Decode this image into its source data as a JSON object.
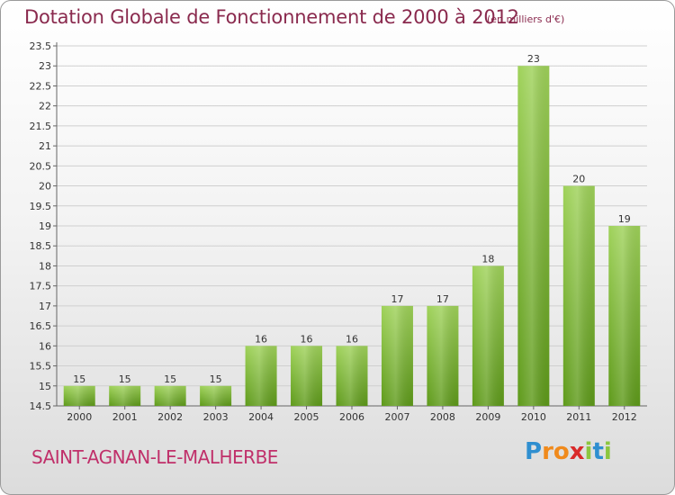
{
  "title": "Dotation Globale de Fonctionnement de 2000 à 2012",
  "subtitle": "(en milliers d'€)",
  "commune": "SAINT-AGNAN-LE-MALHERBE",
  "logo": {
    "letters": [
      "P",
      "r",
      "o",
      "x",
      "i",
      "t",
      "i"
    ],
    "colors": [
      "#2f8fd0",
      "#f08a1c",
      "#f08a1c",
      "#d92a2a",
      "#8cc63f",
      "#2f8fd0",
      "#8cc63f"
    ]
  },
  "colors": {
    "bar_light": "#9fd25a",
    "bar_dark": "#5e9a1a",
    "grid": "#cfcfcf",
    "title": "#8a2a4e",
    "commune": "#c0306a"
  },
  "chart_data": {
    "type": "bar",
    "categories": [
      "2000",
      "2001",
      "2002",
      "2003",
      "2004",
      "2005",
      "2006",
      "2007",
      "2008",
      "2009",
      "2010",
      "2011",
      "2012"
    ],
    "values": [
      15,
      15,
      15,
      15,
      16,
      16,
      16,
      17,
      17,
      18,
      23,
      20,
      19
    ],
    "data_labels": [
      "15",
      "15",
      "15",
      "15",
      "16",
      "16",
      "16",
      "17",
      "17",
      "18",
      "23",
      "20",
      "19"
    ],
    "ylim": [
      14.5,
      23.5
    ],
    "yticks": [
      "14.5",
      "15",
      "15.5",
      "16",
      "16.5",
      "17",
      "17.5",
      "18",
      "18.5",
      "19",
      "19.5",
      "20",
      "20.5",
      "21",
      "21.5",
      "22",
      "22.5",
      "23",
      "23.5"
    ],
    "grid": true,
    "xlabel": "",
    "ylabel": ""
  }
}
